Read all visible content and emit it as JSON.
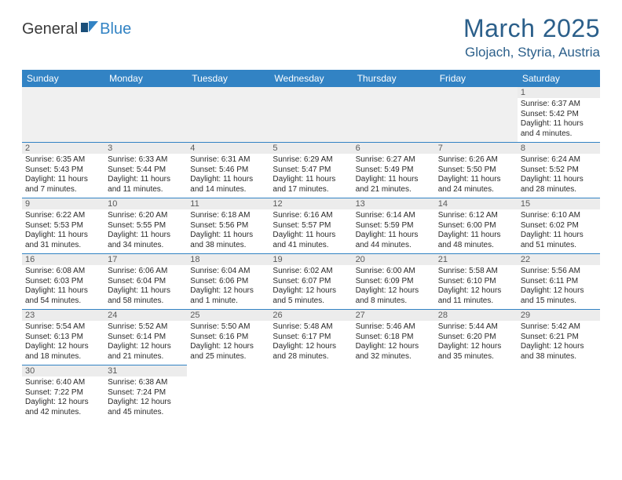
{
  "brand": {
    "part1": "General",
    "part2": "Blue"
  },
  "title": "March 2025",
  "location": "Glojach, Styria, Austria",
  "colors": {
    "header_bg": "#3283c4",
    "header_fg": "#ffffff",
    "title_color": "#2b5f8a",
    "daynum_bg": "#ececec",
    "cell_border": "#3283c4",
    "text": "#2a2a2a"
  },
  "weekdays": [
    "Sunday",
    "Monday",
    "Tuesday",
    "Wednesday",
    "Thursday",
    "Friday",
    "Saturday"
  ],
  "weeks": [
    [
      null,
      null,
      null,
      null,
      null,
      null,
      {
        "n": "1",
        "sr": "Sunrise: 6:37 AM",
        "ss": "Sunset: 5:42 PM",
        "d1": "Daylight: 11 hours",
        "d2": "and 4 minutes."
      }
    ],
    [
      {
        "n": "2",
        "sr": "Sunrise: 6:35 AM",
        "ss": "Sunset: 5:43 PM",
        "d1": "Daylight: 11 hours",
        "d2": "and 7 minutes."
      },
      {
        "n": "3",
        "sr": "Sunrise: 6:33 AM",
        "ss": "Sunset: 5:44 PM",
        "d1": "Daylight: 11 hours",
        "d2": "and 11 minutes."
      },
      {
        "n": "4",
        "sr": "Sunrise: 6:31 AM",
        "ss": "Sunset: 5:46 PM",
        "d1": "Daylight: 11 hours",
        "d2": "and 14 minutes."
      },
      {
        "n": "5",
        "sr": "Sunrise: 6:29 AM",
        "ss": "Sunset: 5:47 PM",
        "d1": "Daylight: 11 hours",
        "d2": "and 17 minutes."
      },
      {
        "n": "6",
        "sr": "Sunrise: 6:27 AM",
        "ss": "Sunset: 5:49 PM",
        "d1": "Daylight: 11 hours",
        "d2": "and 21 minutes."
      },
      {
        "n": "7",
        "sr": "Sunrise: 6:26 AM",
        "ss": "Sunset: 5:50 PM",
        "d1": "Daylight: 11 hours",
        "d2": "and 24 minutes."
      },
      {
        "n": "8",
        "sr": "Sunrise: 6:24 AM",
        "ss": "Sunset: 5:52 PM",
        "d1": "Daylight: 11 hours",
        "d2": "and 28 minutes."
      }
    ],
    [
      {
        "n": "9",
        "sr": "Sunrise: 6:22 AM",
        "ss": "Sunset: 5:53 PM",
        "d1": "Daylight: 11 hours",
        "d2": "and 31 minutes."
      },
      {
        "n": "10",
        "sr": "Sunrise: 6:20 AM",
        "ss": "Sunset: 5:55 PM",
        "d1": "Daylight: 11 hours",
        "d2": "and 34 minutes."
      },
      {
        "n": "11",
        "sr": "Sunrise: 6:18 AM",
        "ss": "Sunset: 5:56 PM",
        "d1": "Daylight: 11 hours",
        "d2": "and 38 minutes."
      },
      {
        "n": "12",
        "sr": "Sunrise: 6:16 AM",
        "ss": "Sunset: 5:57 PM",
        "d1": "Daylight: 11 hours",
        "d2": "and 41 minutes."
      },
      {
        "n": "13",
        "sr": "Sunrise: 6:14 AM",
        "ss": "Sunset: 5:59 PM",
        "d1": "Daylight: 11 hours",
        "d2": "and 44 minutes."
      },
      {
        "n": "14",
        "sr": "Sunrise: 6:12 AM",
        "ss": "Sunset: 6:00 PM",
        "d1": "Daylight: 11 hours",
        "d2": "and 48 minutes."
      },
      {
        "n": "15",
        "sr": "Sunrise: 6:10 AM",
        "ss": "Sunset: 6:02 PM",
        "d1": "Daylight: 11 hours",
        "d2": "and 51 minutes."
      }
    ],
    [
      {
        "n": "16",
        "sr": "Sunrise: 6:08 AM",
        "ss": "Sunset: 6:03 PM",
        "d1": "Daylight: 11 hours",
        "d2": "and 54 minutes."
      },
      {
        "n": "17",
        "sr": "Sunrise: 6:06 AM",
        "ss": "Sunset: 6:04 PM",
        "d1": "Daylight: 11 hours",
        "d2": "and 58 minutes."
      },
      {
        "n": "18",
        "sr": "Sunrise: 6:04 AM",
        "ss": "Sunset: 6:06 PM",
        "d1": "Daylight: 12 hours",
        "d2": "and 1 minute."
      },
      {
        "n": "19",
        "sr": "Sunrise: 6:02 AM",
        "ss": "Sunset: 6:07 PM",
        "d1": "Daylight: 12 hours",
        "d2": "and 5 minutes."
      },
      {
        "n": "20",
        "sr": "Sunrise: 6:00 AM",
        "ss": "Sunset: 6:09 PM",
        "d1": "Daylight: 12 hours",
        "d2": "and 8 minutes."
      },
      {
        "n": "21",
        "sr": "Sunrise: 5:58 AM",
        "ss": "Sunset: 6:10 PM",
        "d1": "Daylight: 12 hours",
        "d2": "and 11 minutes."
      },
      {
        "n": "22",
        "sr": "Sunrise: 5:56 AM",
        "ss": "Sunset: 6:11 PM",
        "d1": "Daylight: 12 hours",
        "d2": "and 15 minutes."
      }
    ],
    [
      {
        "n": "23",
        "sr": "Sunrise: 5:54 AM",
        "ss": "Sunset: 6:13 PM",
        "d1": "Daylight: 12 hours",
        "d2": "and 18 minutes."
      },
      {
        "n": "24",
        "sr": "Sunrise: 5:52 AM",
        "ss": "Sunset: 6:14 PM",
        "d1": "Daylight: 12 hours",
        "d2": "and 21 minutes."
      },
      {
        "n": "25",
        "sr": "Sunrise: 5:50 AM",
        "ss": "Sunset: 6:16 PM",
        "d1": "Daylight: 12 hours",
        "d2": "and 25 minutes."
      },
      {
        "n": "26",
        "sr": "Sunrise: 5:48 AM",
        "ss": "Sunset: 6:17 PM",
        "d1": "Daylight: 12 hours",
        "d2": "and 28 minutes."
      },
      {
        "n": "27",
        "sr": "Sunrise: 5:46 AM",
        "ss": "Sunset: 6:18 PM",
        "d1": "Daylight: 12 hours",
        "d2": "and 32 minutes."
      },
      {
        "n": "28",
        "sr": "Sunrise: 5:44 AM",
        "ss": "Sunset: 6:20 PM",
        "d1": "Daylight: 12 hours",
        "d2": "and 35 minutes."
      },
      {
        "n": "29",
        "sr": "Sunrise: 5:42 AM",
        "ss": "Sunset: 6:21 PM",
        "d1": "Daylight: 12 hours",
        "d2": "and 38 minutes."
      }
    ],
    [
      {
        "n": "30",
        "sr": "Sunrise: 6:40 AM",
        "ss": "Sunset: 7:22 PM",
        "d1": "Daylight: 12 hours",
        "d2": "and 42 minutes."
      },
      {
        "n": "31",
        "sr": "Sunrise: 6:38 AM",
        "ss": "Sunset: 7:24 PM",
        "d1": "Daylight: 12 hours",
        "d2": "and 45 minutes."
      },
      null,
      null,
      null,
      null,
      null
    ]
  ]
}
